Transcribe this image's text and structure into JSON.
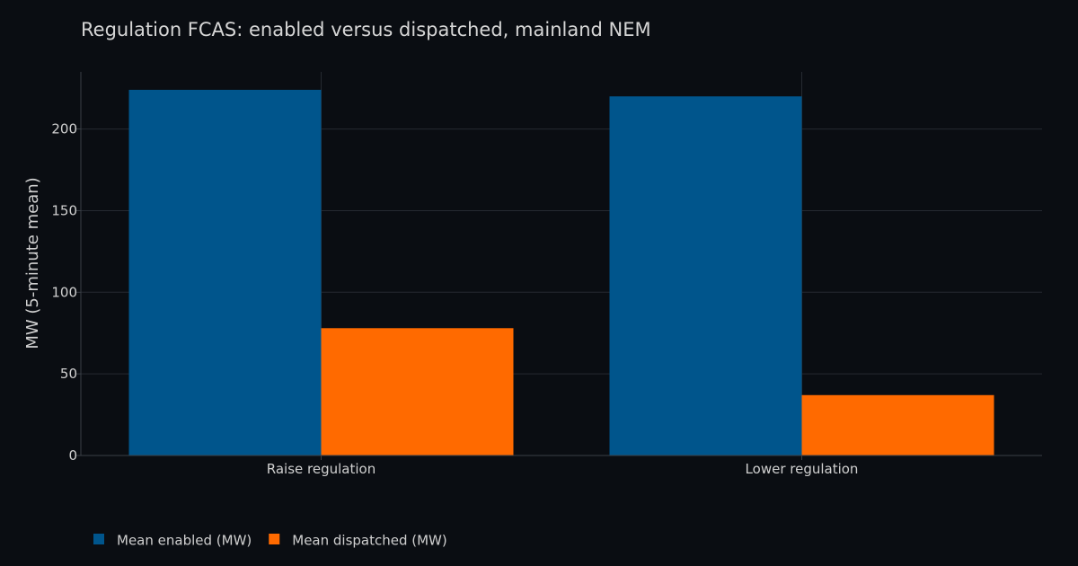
{
  "chart_data": {
    "type": "bar",
    "title": "Regulation FCAS: enabled versus dispatched, mainland NEM",
    "xlabel": "",
    "ylabel": "MW (5-minute mean)",
    "categories": [
      "Raise regulation",
      "Lower regulation"
    ],
    "series": [
      {
        "name": "Mean enabled (MW)",
        "values": [
          224,
          220
        ],
        "color": "#00558c"
      },
      {
        "name": "Mean dispatched (MW)",
        "values": [
          78,
          37
        ],
        "color": "#ff6a00"
      }
    ],
    "ylim": [
      0,
      235
    ],
    "yticks": [
      0,
      50,
      100,
      150,
      200
    ],
    "grid": true,
    "legend_position": "bottom-left"
  }
}
